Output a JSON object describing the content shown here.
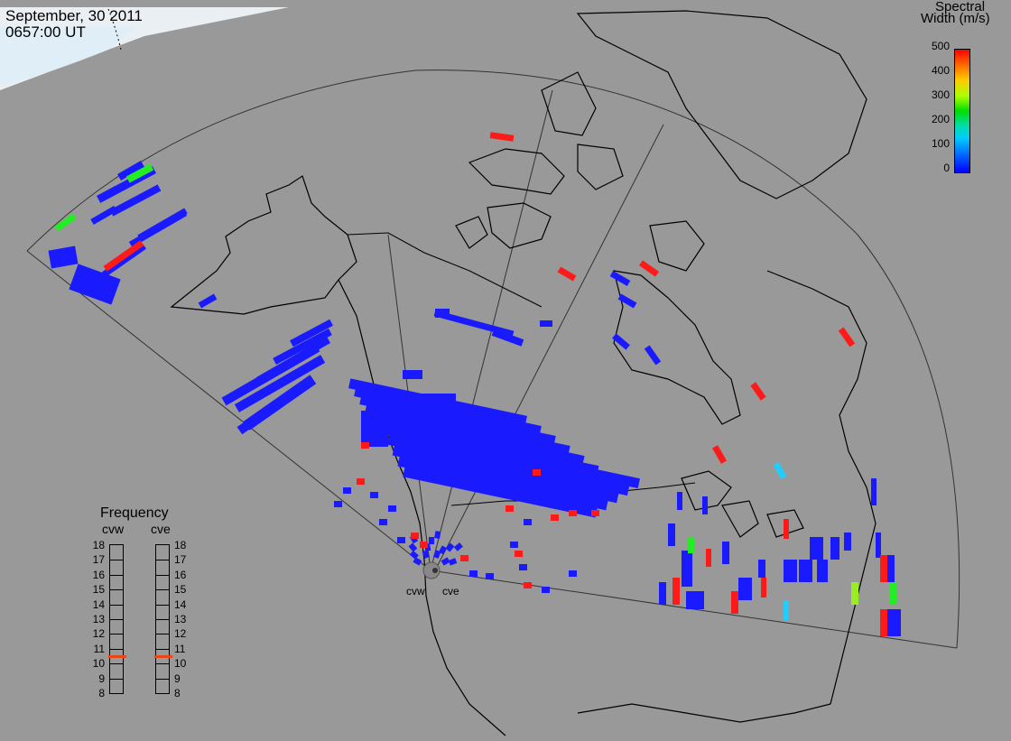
{
  "header": {
    "date": "September, 30 2011",
    "time": "0657:00 UT"
  },
  "colorbar": {
    "title_line1": "Spectral",
    "title_line2": "Width (m/s)",
    "ticks": [
      "500",
      "400",
      "300",
      "200",
      "100",
      "0"
    ]
  },
  "frequency": {
    "title": "Frequency",
    "radars": [
      "cvw",
      "cve"
    ],
    "levels": [
      "18",
      "17",
      "16",
      "15",
      "14",
      "13",
      "12",
      "11",
      "10",
      "9",
      "8"
    ],
    "cvw_value": 10.5,
    "cve_value": 10.5
  },
  "site_labels": {
    "cvw": "cvw",
    "cve": "cve"
  },
  "colors": {
    "background": "#999999",
    "blue": "#1a1aff",
    "red": "#ff1a1a",
    "green": "#22ee22",
    "cyan": "#22ccff",
    "lime": "#99ee22",
    "marker": "#e8461b"
  }
}
